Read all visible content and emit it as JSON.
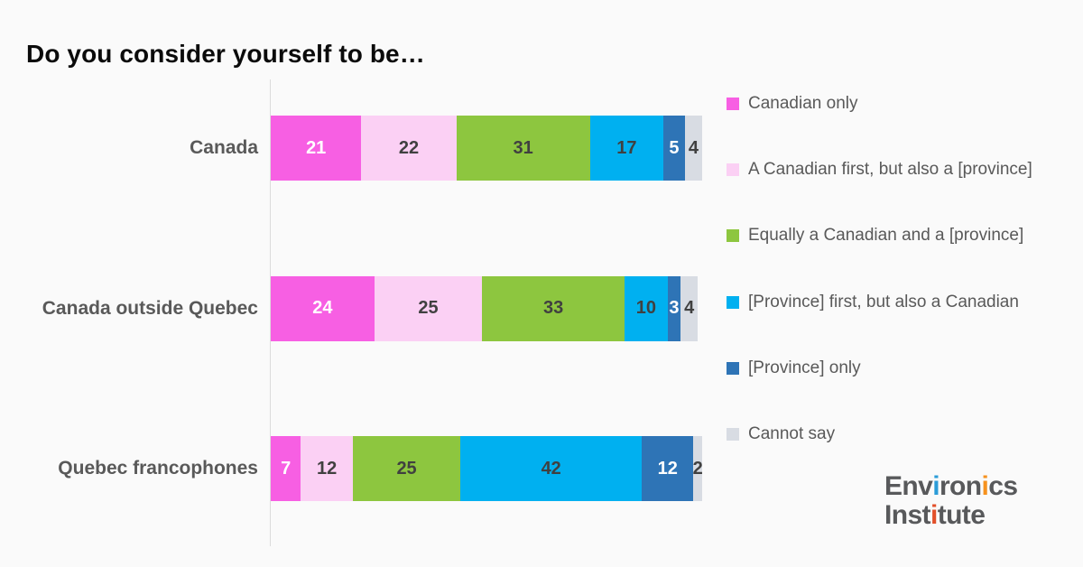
{
  "page": {
    "background_color": "#FAFAFA"
  },
  "chart_data": {
    "type": "bar",
    "subtype": "horizontal-stacked",
    "title": "Do you consider yourself to be…",
    "categories": [
      "Canada",
      "Canada outside Quebec",
      "Quebec francophones"
    ],
    "series": [
      {
        "name": "Canadian only",
        "color": "#F75FE3",
        "value_text_color": "#FFFFFF",
        "values": [
          21,
          24,
          7
        ]
      },
      {
        "name": "A Canadian first, but also a [province]",
        "color": "#FBD0F4",
        "value_text_color": "#404040",
        "values": [
          22,
          25,
          12
        ]
      },
      {
        "name": "Equally a Canadian and a [province]",
        "color": "#8DC63F",
        "value_text_color": "#404040",
        "values": [
          31,
          33,
          25
        ]
      },
      {
        "name": "[Province] first, but also a Canadian",
        "color": "#00B0F0",
        "value_text_color": "#404040",
        "values": [
          17,
          10,
          42
        ]
      },
      {
        "name": "[Province] only",
        "color": "#2E74B6",
        "value_text_color": "#FFFFFF",
        "values": [
          5,
          3,
          12
        ]
      },
      {
        "name": "Cannot say",
        "color": "#D8DCE3",
        "value_text_color": "#404040",
        "values": [
          4,
          4,
          2
        ]
      }
    ],
    "xlim": [
      0,
      100
    ],
    "value_labels": "inside-center",
    "legend_position": "right",
    "grid": false,
    "axis_line_color": "#DCDCDC",
    "category_label_color": "#595959",
    "legend_text_color": "#595959",
    "title_color": "#0B0B0B"
  },
  "logo": {
    "name": "Environics Institute",
    "line1_parts": [
      {
        "t": "Env",
        "c": "#58595B"
      },
      {
        "t": "i",
        "c": "#2B9CD8"
      },
      {
        "t": "ron",
        "c": "#58595B"
      },
      {
        "t": "i",
        "c": "#F6921E"
      },
      {
        "t": "cs",
        "c": "#58595B"
      }
    ],
    "line2_parts": [
      {
        "t": "Inst",
        "c": "#58595B"
      },
      {
        "t": "i",
        "c": "#E2502A"
      },
      {
        "t": "tute",
        "c": "#58595B"
      }
    ]
  }
}
